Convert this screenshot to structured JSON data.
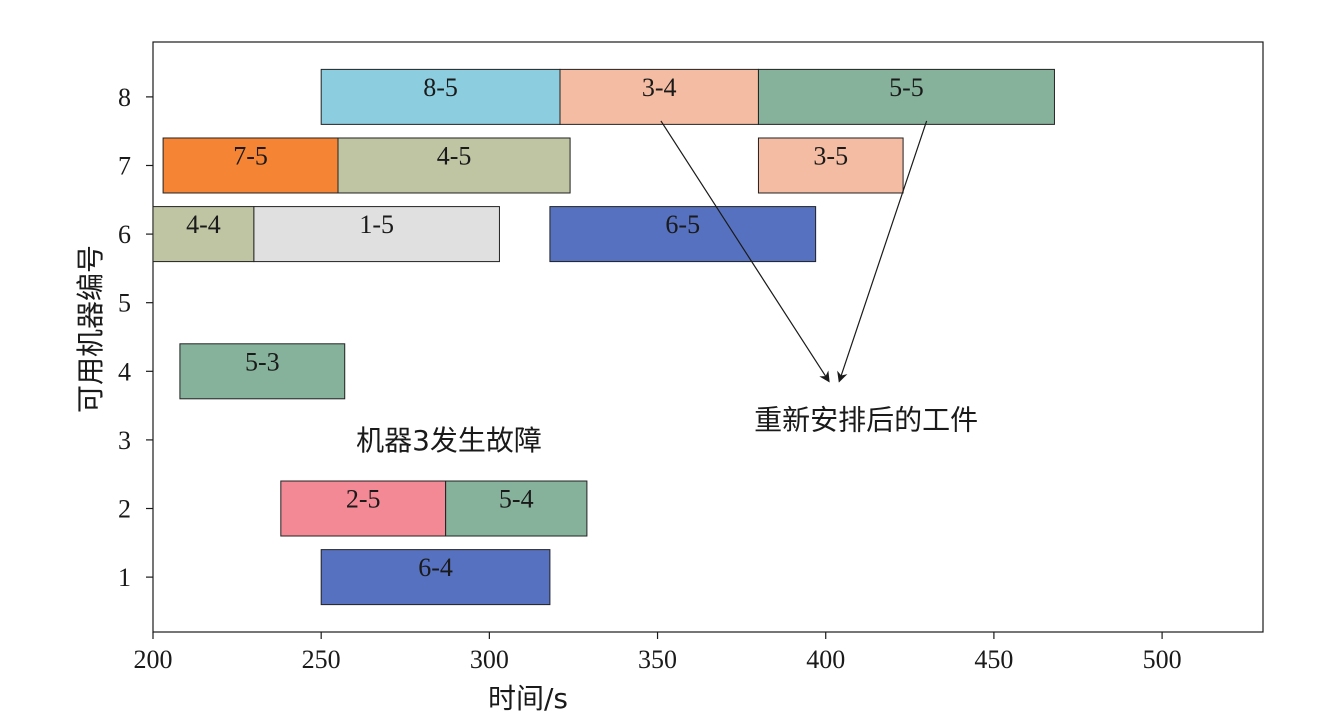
{
  "chart_data": {
    "type": "gantt",
    "xlabel": "时间/s",
    "ylabel": "可用机器编号",
    "xlim": [
      200,
      530
    ],
    "ylim": [
      0.2,
      8.8
    ],
    "xticks": [
      200,
      250,
      300,
      350,
      400,
      450,
      500
    ],
    "yticks": [
      1,
      2,
      3,
      4,
      5,
      6,
      7,
      8
    ],
    "bars": [
      {
        "label": "8-5",
        "machine": 8,
        "start": 250,
        "end": 321,
        "color": "#8dcde0"
      },
      {
        "label": "3-4",
        "machine": 8,
        "start": 321,
        "end": 380,
        "color": "#f4bca2"
      },
      {
        "label": "5-5",
        "machine": 8,
        "start": 380,
        "end": 468,
        "color": "#86b29b"
      },
      {
        "label": "7-5",
        "machine": 7,
        "start": 203,
        "end": 255,
        "color": "#f58535"
      },
      {
        "label": "4-5",
        "machine": 7,
        "start": 255,
        "end": 324,
        "color": "#bfc4a3"
      },
      {
        "label": "3-5",
        "machine": 7,
        "start": 380,
        "end": 423,
        "color": "#f4bca2"
      },
      {
        "label": "4-4",
        "machine": 6,
        "start": 200,
        "end": 230,
        "color": "#bfc4a3"
      },
      {
        "label": "1-5",
        "machine": 6,
        "start": 230,
        "end": 303,
        "color": "#e0e0e0"
      },
      {
        "label": "6-5",
        "machine": 6,
        "start": 318,
        "end": 397,
        "color": "#5671bf"
      },
      {
        "label": "5-3",
        "machine": 4,
        "start": 208,
        "end": 257,
        "color": "#86b29b"
      },
      {
        "label": "2-5",
        "machine": 2,
        "start": 238,
        "end": 287,
        "color": "#f38995"
      },
      {
        "label": "5-4",
        "machine": 2,
        "start": 287,
        "end": 329,
        "color": "#86b29b"
      },
      {
        "label": "6-4",
        "machine": 1,
        "start": 250,
        "end": 318,
        "color": "#5671bf"
      }
    ],
    "annotations": [
      {
        "text": "机器3发生故障",
        "x": 288,
        "y": 3
      },
      {
        "text": "重新安排后的工件",
        "x": 412,
        "y": 3.3,
        "arrows_from": [
          {
            "x": 351,
            "y": 7.65
          },
          {
            "x": 430,
            "y": 7.65
          }
        ],
        "arrow_to": [
          {
            "x": 401,
            "y": 3.85
          },
          {
            "x": 404,
            "y": 3.85
          }
        ]
      }
    ]
  }
}
